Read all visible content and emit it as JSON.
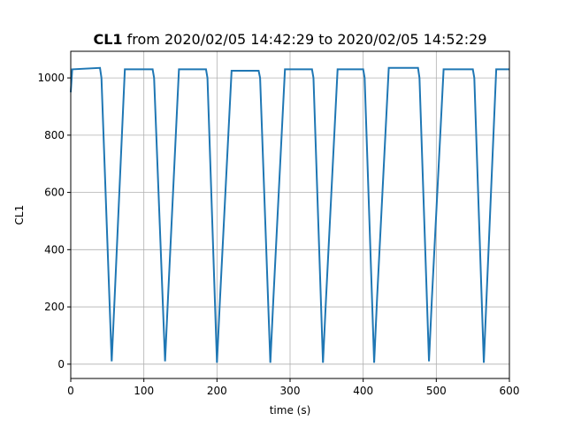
{
  "chart_data": {
    "type": "line",
    "title": [
      "CL1",
      "from 2020/02/05 14:42:29 to 2020/02/05 14:52:29"
    ],
    "xlabel": "time (s)",
    "ylabel": "CL1",
    "x": [
      0,
      2,
      40,
      42,
      56,
      60,
      74,
      112,
      114,
      129,
      133,
      148,
      185,
      187,
      200,
      204,
      220,
      257,
      259,
      273,
      277,
      293,
      330,
      332,
      345,
      349,
      365,
      400,
      402,
      415,
      419,
      435,
      475,
      477,
      490,
      494,
      510,
      550,
      552,
      565,
      569,
      582,
      600
    ],
    "series": [
      {
        "name": "CL1",
        "color": "#1f77b4",
        "values": [
          950,
          1030,
          1035,
          1000,
          10,
          230,
          1030,
          1030,
          1000,
          10,
          230,
          1030,
          1030,
          1000,
          5,
          220,
          1025,
          1025,
          1000,
          5,
          220,
          1030,
          1030,
          1000,
          5,
          220,
          1030,
          1030,
          1000,
          5,
          230,
          1035,
          1035,
          1000,
          10,
          230,
          1030,
          1030,
          1000,
          5,
          250,
          1030,
          1030
        ]
      }
    ],
    "xlim": [
      0,
      600
    ],
    "ylim": [
      -50,
      1093
    ],
    "xticks": [
      0,
      100,
      200,
      300,
      400,
      500,
      600
    ],
    "yticks": [
      0,
      200,
      400,
      600,
      800,
      1000
    ],
    "grid": true
  }
}
